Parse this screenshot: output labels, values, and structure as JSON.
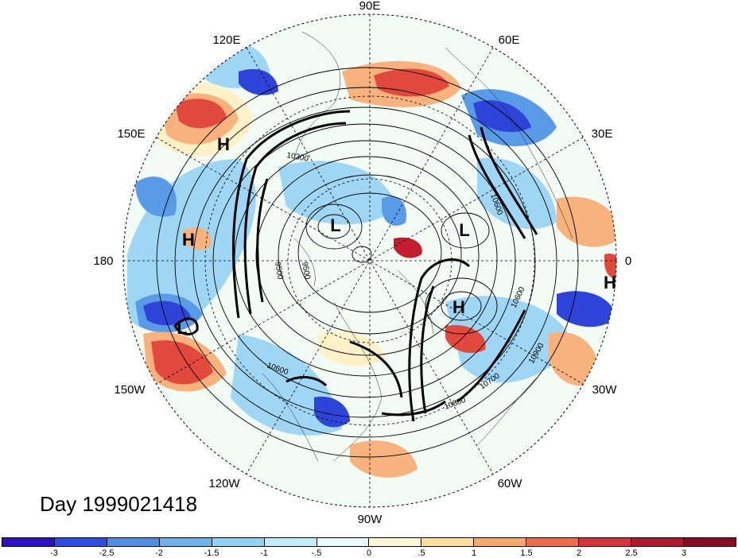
{
  "title": "Day 1999021418",
  "longitude_labels": {
    "deg90e": "90E",
    "deg120e": "120E",
    "deg60e": "60E",
    "deg150e": "150E",
    "deg30e": "30E",
    "deg180": "180",
    "deg0": "0",
    "deg150w": "150W",
    "deg30w": "30W",
    "deg120w": "120W",
    "deg60w": "60W",
    "deg90w": "90W"
  },
  "pressure_centers": {
    "h_siberia": "H",
    "h_pacific": "H",
    "l_aleutian": "L",
    "l_polar": "L",
    "l_europe": "L",
    "h_atlantic": "H",
    "h_edge": "H"
  },
  "contour_labels": {
    "c9500a": "9500",
    "c9500b": "9500",
    "c10600a": "10600",
    "c10600b": "10600",
    "c10700": "10700",
    "c10800": "10800",
    "c10900": "10900",
    "c10600c": "10600",
    "c10300": "10300"
  },
  "colorbar": {
    "labels": [
      "-3",
      "-2.5",
      "-2",
      "-1.5",
      "-1",
      "-.5",
      "0",
      ".5",
      "1",
      "1.5",
      "2",
      "2.5",
      "3"
    ],
    "colors": [
      "#2e0fc8",
      "#2a4ee6",
      "#4e8fea",
      "#6cb3ee",
      "#8fd3f2",
      "#bdeefa",
      "#e9fbff",
      "#fff7d6",
      "#ffdf99",
      "#f9a86c",
      "#ef6b4a",
      "#d8303b",
      "#b0182c",
      "#8c0b20"
    ]
  },
  "map_colors": {
    "blue_strong": "#2e44d8",
    "blue": "#5a9be8",
    "blue_light": "#9fd6f3",
    "neutral": "#f3fbf5",
    "cream": "#fff1c8",
    "orange": "#f7b27d",
    "red": "#e2493d",
    "red_dark": "#c41d2f"
  }
}
